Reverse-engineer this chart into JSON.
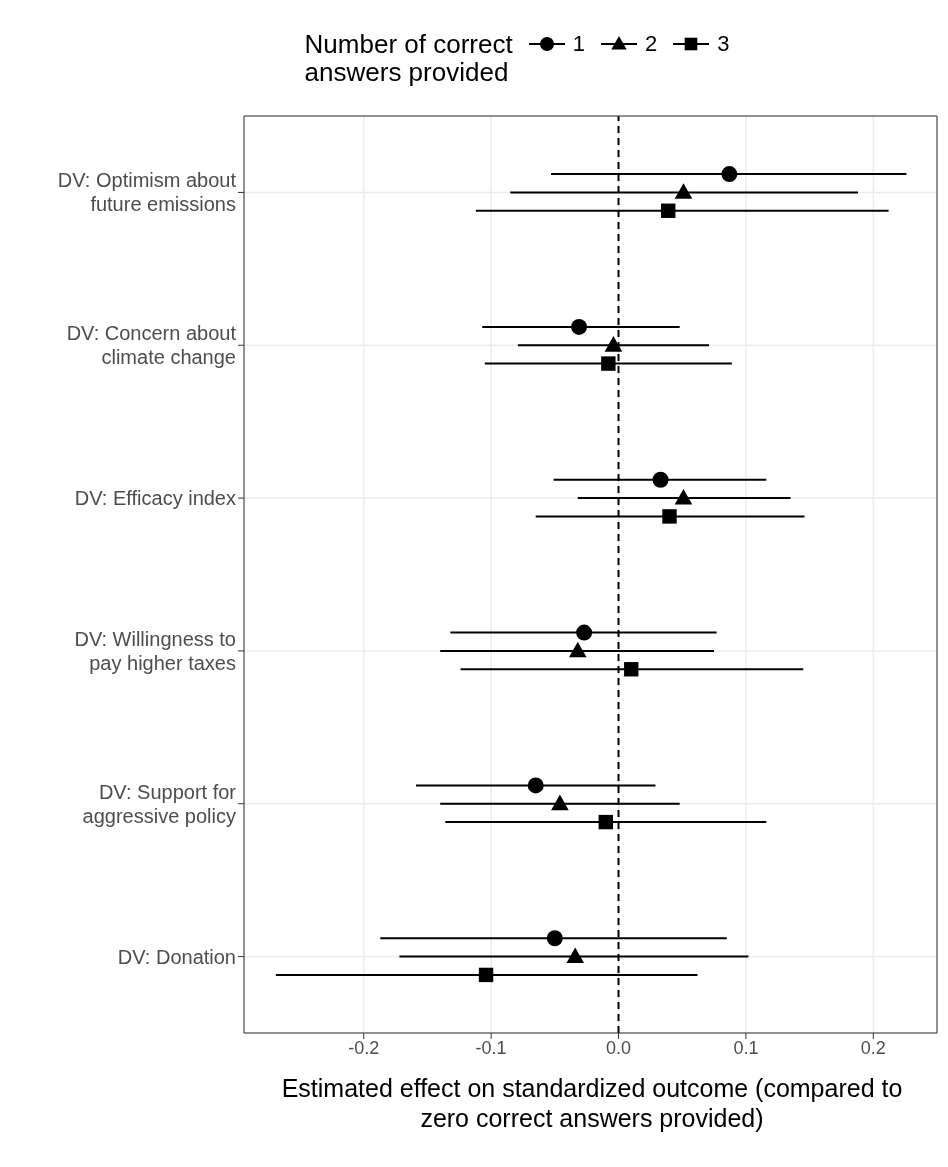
{
  "chart_data": {
    "type": "scatter",
    "orientation": "horizontal",
    "legend": "top",
    "legend_title": "Number of correct answers provided",
    "grid": true,
    "xlabel": "Estimated effect on standardized outcome (compared to zero correct answers provided)",
    "categories": [
      "DV: Optimism about future emissions",
      "DV: Concern about climate change",
      "DV: Efficacy index",
      "DV: Willingness to pay higher taxes",
      "DV: Support for aggressive policy",
      "DV: Donation"
    ],
    "xlim": [
      -0.294,
      0.25
    ],
    "xticks": [
      -0.2,
      -0.1,
      {
        "value": 0,
        "label": "0.0"
      },
      0.1,
      0.2
    ],
    "ref_lines": [
      {
        "axis": "x",
        "value": 0,
        "line_style": "dashed",
        "color": "#000000"
      }
    ],
    "series": [
      {
        "name": "1",
        "color": "#000000",
        "marker": "circle",
        "values": [
          0.087,
          -0.031,
          0.033,
          -0.027,
          -0.065,
          -0.05
        ],
        "errors": [
          [
            -0.053,
            0.226
          ],
          [
            -0.107,
            0.048
          ],
          [
            -0.051,
            0.116
          ],
          [
            -0.132,
            0.077
          ],
          [
            -0.159,
            0.029
          ],
          [
            -0.187,
            0.085
          ]
        ]
      },
      {
        "name": "2",
        "color": "#000000",
        "marker": "triangle",
        "values": [
          0.051,
          -0.004,
          0.051,
          -0.032,
          -0.046,
          -0.034
        ],
        "errors": [
          [
            -0.085,
            0.188
          ],
          [
            -0.079,
            0.071
          ],
          [
            -0.032,
            0.135
          ],
          [
            -0.14,
            0.075
          ],
          [
            -0.14,
            0.048
          ],
          [
            -0.172,
            0.102
          ]
        ]
      },
      {
        "name": "3",
        "color": "#000000",
        "marker": "square",
        "values": [
          0.039,
          -0.008,
          0.04,
          0.01,
          -0.01,
          -0.104
        ],
        "errors": [
          [
            -0.112,
            0.212
          ],
          [
            -0.105,
            0.089
          ],
          [
            -0.065,
            0.146
          ],
          [
            -0.124,
            0.145
          ],
          [
            -0.136,
            0.116
          ],
          [
            -0.269,
            0.062
          ]
        ]
      }
    ]
  }
}
